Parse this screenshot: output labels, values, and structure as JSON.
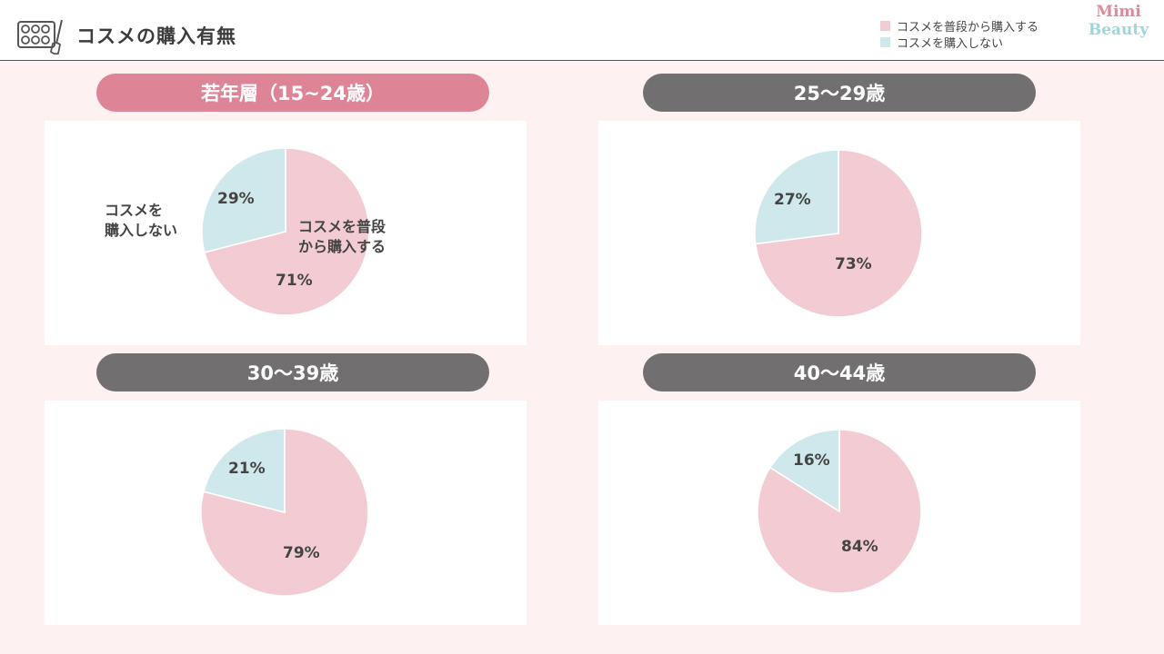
{
  "page": {
    "title": "コスメの購入有無"
  },
  "logo": {
    "line1": "Mimi",
    "line2": "Beauty"
  },
  "colors": {
    "buy": "#f3ccd3",
    "nobuy": "#cfe8ec",
    "pill_active": "#dd8597",
    "pill_default": "#716f70"
  },
  "legend": [
    {
      "label": "コスメを普段から購入する",
      "color": "#f3ccd3"
    },
    {
      "label": "コスメを購入しない",
      "color": "#cfe8ec"
    }
  ],
  "chart_data": [
    {
      "type": "pie",
      "title": "若年層（15~24歳）",
      "categories": [
        "コスメを普段から購入する",
        "コスメを購入しない"
      ],
      "values": [
        71,
        29
      ],
      "labels": [
        "71%",
        "29%"
      ],
      "callouts": {
        "buy": "コスメを普段\nから購入する",
        "nobuy": "コスメを\n購入しない"
      }
    },
    {
      "type": "pie",
      "title": "25〜29歳",
      "categories": [
        "コスメを普段から購入する",
        "コスメを購入しない"
      ],
      "values": [
        73,
        27
      ],
      "labels": [
        "73%",
        "27%"
      ]
    },
    {
      "type": "pie",
      "title": "30〜39歳",
      "categories": [
        "コスメを普段から購入する",
        "コスメを購入しない"
      ],
      "values": [
        79,
        21
      ],
      "labels": [
        "79%",
        "21%"
      ]
    },
    {
      "type": "pie",
      "title": "40〜44歳",
      "categories": [
        "コスメを普段から購入する",
        "コスメを購入しない"
      ],
      "values": [
        84,
        16
      ],
      "labels": [
        "84%",
        "16%"
      ]
    }
  ]
}
